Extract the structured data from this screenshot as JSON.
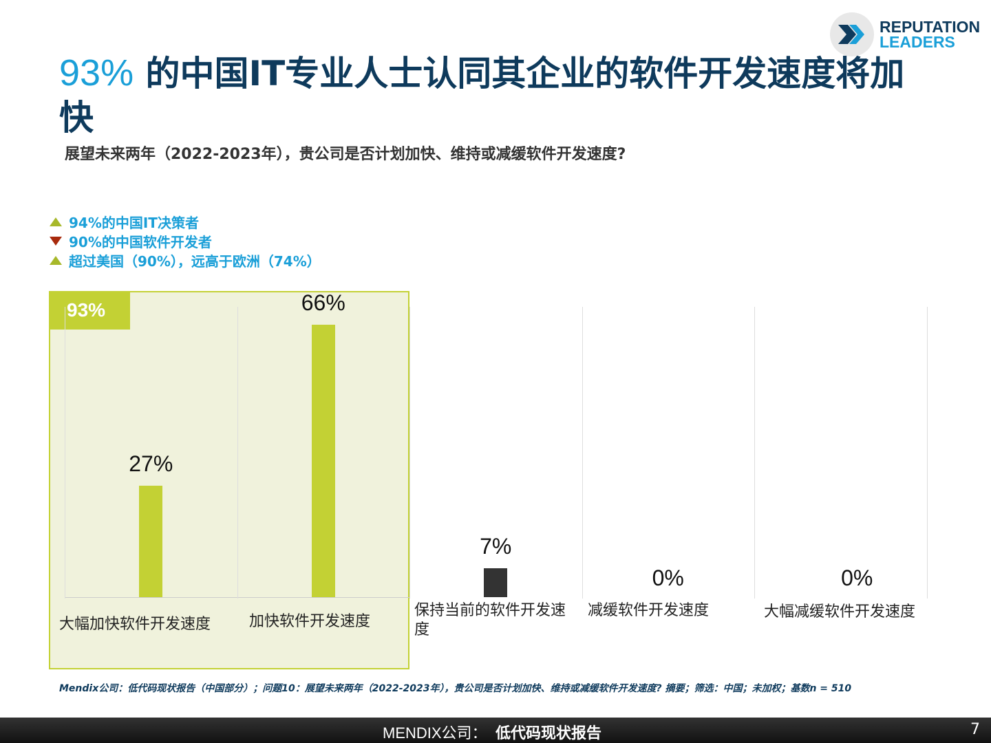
{
  "logo": {
    "line1": "REPUTATION",
    "line2": "LEADERS"
  },
  "title": {
    "pct": "93%",
    "text": " 的中国IT专业人士认同其企业的软件开发速度将加快"
  },
  "subtitle": "展望未来两年（2022-2023年），贵公司是否计划加快、维持或减缓软件开发速度?",
  "legend": [
    {
      "text": "94%的中国IT决策者",
      "direction": "up"
    },
    {
      "text": "90%的中国软件开发者",
      "direction": "down"
    },
    {
      "text": "超过美国（90%），远高于欧洲（74%）",
      "direction": "up"
    }
  ],
  "badge": "93%",
  "chart_data": {
    "type": "bar",
    "categories": [
      "大幅加快软件开发速度",
      "加快软件开发速度",
      "保持当前的软件开发速度",
      "减缓软件开发速度",
      "大幅减缓软件开发速度"
    ],
    "values": [
      27,
      66,
      7,
      0,
      0
    ],
    "labels": [
      "27%",
      "66%",
      "7%",
      "0%",
      "0%"
    ],
    "colors": [
      "#c3d134",
      "#c3d134",
      "#333333",
      "#c3d134",
      "#c3d134"
    ],
    "ylim": [
      0,
      70
    ]
  },
  "note": "Mendix公司：低代码现状报告（中国部分）；问题10：展望未来两年（2022-2023年），贵公司是否计划加快、维持或减缓软件开发速度? 摘要；筛选：中国；未加权；基数n = 510",
  "footer": {
    "brand": "MENDIX公司：",
    "title": "低代码现状报告",
    "page": "7"
  }
}
